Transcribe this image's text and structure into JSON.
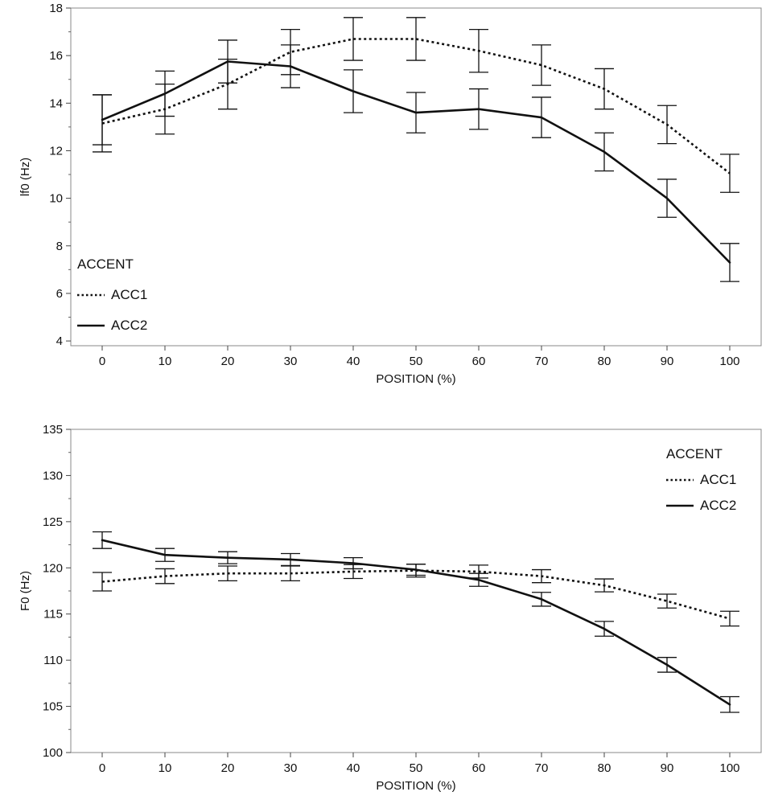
{
  "chart_data": [
    {
      "type": "line",
      "xlabel": "POSITION (%)",
      "ylabel": "lf0 (Hz)",
      "x": [
        0,
        10,
        20,
        30,
        40,
        50,
        60,
        70,
        80,
        90,
        100
      ],
      "xticks": [
        "0",
        "10",
        "20",
        "30",
        "40",
        "50",
        "60",
        "70",
        "80",
        "90",
        "100"
      ],
      "xlim": [
        -5,
        105
      ],
      "ylim": [
        3.8,
        18
      ],
      "yticks": [
        "4",
        "6",
        "8",
        "10",
        "12",
        "14",
        "16",
        "18"
      ],
      "yticks_values": [
        4,
        6,
        8,
        10,
        12,
        14,
        16,
        18
      ],
      "grid": false,
      "legend": {
        "title": "ACCENT",
        "placement": "bottom-left",
        "entries": [
          "ACC1",
          "ACC2"
        ]
      },
      "series": [
        {
          "name": "ACC1",
          "style": "dotted",
          "values": [
            13.15,
            13.75,
            14.8,
            16.15,
            16.7,
            16.7,
            16.2,
            15.6,
            14.6,
            13.1,
            11.05
          ],
          "error": [
            1.2,
            1.05,
            1.05,
            0.95,
            0.9,
            0.9,
            0.9,
            0.85,
            0.85,
            0.8,
            0.8
          ]
        },
        {
          "name": "ACC2",
          "style": "solid",
          "values": [
            13.3,
            14.4,
            15.75,
            15.55,
            14.5,
            13.6,
            13.75,
            13.4,
            11.95,
            10.0,
            7.3
          ],
          "error": [
            1.05,
            0.95,
            0.9,
            0.9,
            0.9,
            0.85,
            0.85,
            0.85,
            0.8,
            0.8,
            0.8
          ]
        }
      ]
    },
    {
      "type": "line",
      "xlabel": "POSITION (%)",
      "ylabel": "F0 (Hz)",
      "x": [
        0,
        10,
        20,
        30,
        40,
        50,
        60,
        70,
        80,
        90,
        100
      ],
      "xticks": [
        "0",
        "10",
        "20",
        "30",
        "40",
        "50",
        "60",
        "70",
        "80",
        "90",
        "100"
      ],
      "xlim": [
        -5,
        105
      ],
      "ylim": [
        100,
        135
      ],
      "yticks": [
        "100",
        "105",
        "110",
        "115",
        "120",
        "125",
        "130",
        "135"
      ],
      "yticks_values": [
        100,
        105,
        110,
        115,
        120,
        125,
        130,
        135
      ],
      "grid": false,
      "legend": {
        "title": "ACCENT",
        "placement": "top-right",
        "entries": [
          "ACC1",
          "ACC2"
        ]
      },
      "series": [
        {
          "name": "ACC1",
          "style": "dotted",
          "values": [
            118.5,
            119.1,
            119.4,
            119.4,
            119.6,
            119.7,
            119.6,
            119.1,
            118.1,
            116.4,
            114.5
          ],
          "error": [
            1.0,
            0.8,
            0.8,
            0.8,
            0.75,
            0.7,
            0.7,
            0.7,
            0.7,
            0.75,
            0.8
          ]
        },
        {
          "name": "ACC2",
          "style": "solid",
          "values": [
            123.0,
            121.4,
            121.1,
            120.9,
            120.5,
            119.8,
            118.7,
            116.6,
            113.4,
            109.5,
            105.2
          ],
          "error": [
            0.9,
            0.7,
            0.65,
            0.65,
            0.6,
            0.6,
            0.7,
            0.75,
            0.8,
            0.8,
            0.85
          ]
        }
      ]
    }
  ]
}
